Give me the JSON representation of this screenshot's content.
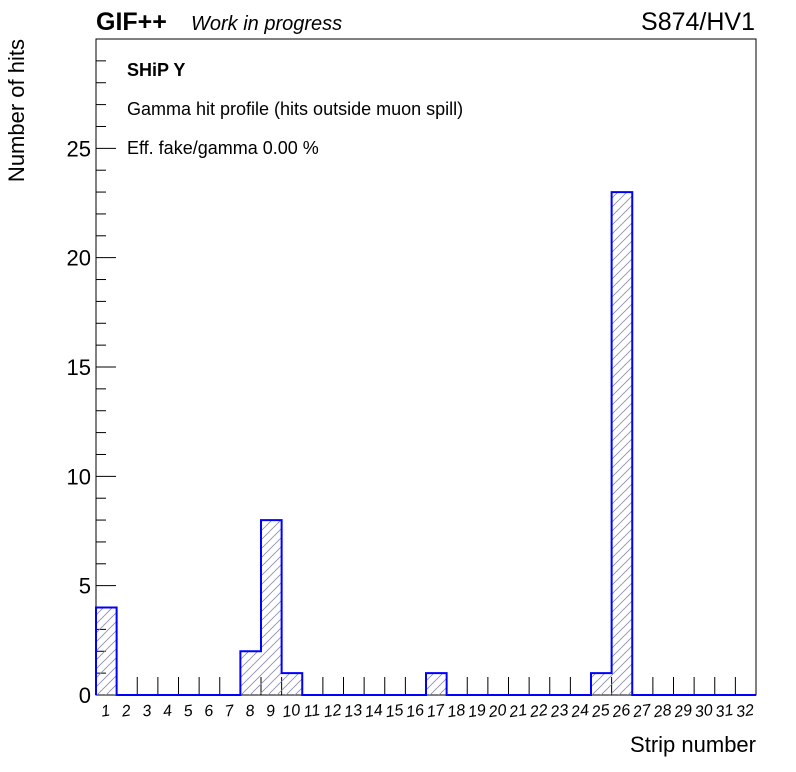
{
  "header": {
    "experiment": "GIF++",
    "status": "Work in progress",
    "run_label": "S874/HV1"
  },
  "legend": {
    "detector": "SHiP Y",
    "description": "Gamma hit profile (hits outside muon spill)",
    "efficiency": "Eff. fake/gamma 0.00 %"
  },
  "chart_data": {
    "type": "bar",
    "style": "histogram",
    "xlabel": "Strip number",
    "ylabel": "Number of hits",
    "categories": [
      "1",
      "2",
      "3",
      "4",
      "5",
      "6",
      "7",
      "8",
      "9",
      "10",
      "11",
      "12",
      "13",
      "14",
      "15",
      "16",
      "17",
      "18",
      "19",
      "20",
      "21",
      "22",
      "23",
      "24",
      "25",
      "26",
      "27",
      "28",
      "29",
      "30",
      "31",
      "32"
    ],
    "values": [
      4,
      0,
      0,
      0,
      0,
      0,
      0,
      2,
      8,
      1,
      0,
      0,
      0,
      0,
      0,
      0,
      1,
      0,
      0,
      0,
      0,
      0,
      0,
      0,
      1,
      23,
      0,
      0,
      0,
      0,
      0,
      0
    ],
    "ylim": [
      0,
      30
    ],
    "yticks": [
      0,
      5,
      10,
      15,
      20,
      25
    ],
    "grid": false,
    "colors": {
      "line": "#0000ff",
      "hatch": "#8a8ab0",
      "frame": "#000000"
    }
  }
}
